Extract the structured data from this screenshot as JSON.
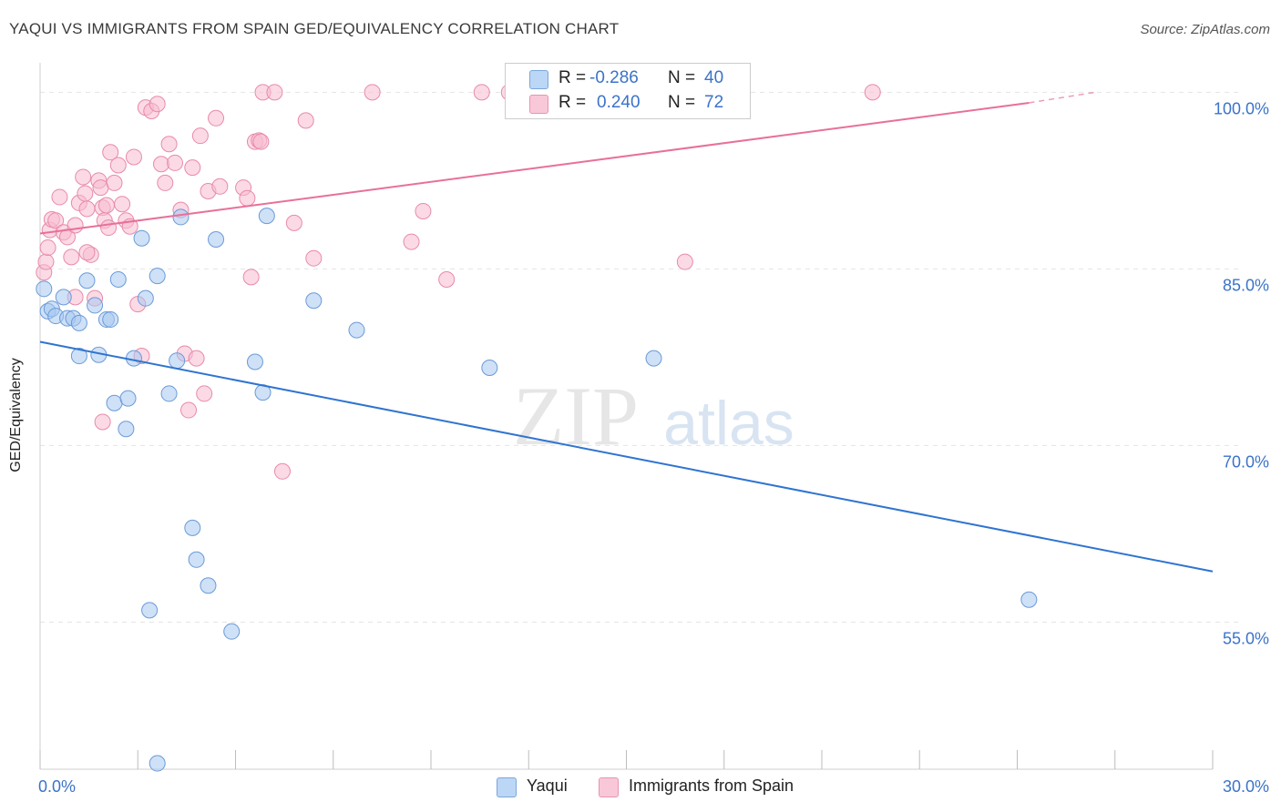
{
  "header": {
    "title": "YAQUI VS IMMIGRANTS FROM SPAIN GED/EQUIVALENCY CORRELATION CHART",
    "source": "Source: ZipAtlas.com"
  },
  "watermark": {
    "zip": "ZIP",
    "atlas": "atlas"
  },
  "legend": {
    "yaqui": {
      "r_label": "R =",
      "r_value": "-0.286",
      "n_label": "N =",
      "n_value": "40"
    },
    "spain": {
      "r_label": "R =",
      "r_value": "0.240",
      "n_label": "N =",
      "n_value": "72"
    }
  },
  "bottom_legend": {
    "yaqui": "Yaqui",
    "spain": "Immigrants from Spain"
  },
  "colors": {
    "yaqui_fill": "#a8c8f0",
    "yaqui_stroke": "#6a9ad8",
    "yaqui_line": "#2f74d0",
    "spain_fill": "#f8bcd0",
    "spain_stroke": "#e88aaa",
    "spain_line": "#e8709a",
    "tick_label": "#3b73c8"
  },
  "chart_data": {
    "type": "scatter",
    "title": "YAQUI VS IMMIGRANTS FROM SPAIN GED/EQUIVALENCY CORRELATION CHART",
    "xlabel": "",
    "ylabel": "GED/Equivalency",
    "xlim": [
      0,
      30
    ],
    "ylim": [
      42.5,
      102.5
    ],
    "x_tick_labels": [
      {
        "value": 0,
        "label": "0.0%"
      },
      {
        "value": 30,
        "label": "30.0%"
      }
    ],
    "y_tick_labels": [
      {
        "value": 100,
        "label": "100.0%"
      },
      {
        "value": 85,
        "label": "85.0%"
      },
      {
        "value": 70,
        "label": "70.0%"
      },
      {
        "value": 55,
        "label": "55.0%"
      }
    ],
    "series": [
      {
        "name": "Yaqui",
        "r": -0.286,
        "n": 40,
        "trend": {
          "x": [
            0,
            30
          ],
          "y": [
            78.8,
            59.3
          ]
        },
        "points": [
          [
            0.1,
            83.3
          ],
          [
            0.2,
            81.4
          ],
          [
            0.3,
            81.6
          ],
          [
            0.4,
            81.0
          ],
          [
            0.6,
            82.6
          ],
          [
            0.7,
            80.8
          ],
          [
            0.85,
            80.8
          ],
          [
            1.0,
            80.4
          ],
          [
            1.0,
            77.6
          ],
          [
            1.2,
            84.0
          ],
          [
            1.4,
            81.9
          ],
          [
            1.5,
            77.7
          ],
          [
            1.7,
            80.7
          ],
          [
            1.8,
            80.7
          ],
          [
            1.9,
            73.6
          ],
          [
            2.0,
            84.1
          ],
          [
            2.2,
            71.4
          ],
          [
            2.25,
            74.0
          ],
          [
            2.4,
            77.4
          ],
          [
            2.6,
            87.6
          ],
          [
            2.7,
            82.5
          ],
          [
            2.8,
            56.0
          ],
          [
            3.0,
            84.4
          ],
          [
            3.0,
            43.0
          ],
          [
            3.3,
            74.4
          ],
          [
            3.5,
            77.2
          ],
          [
            3.6,
            89.4
          ],
          [
            3.9,
            63.0
          ],
          [
            4.0,
            60.3
          ],
          [
            4.3,
            58.1
          ],
          [
            4.5,
            87.5
          ],
          [
            4.9,
            54.2
          ],
          [
            5.5,
            77.1
          ],
          [
            5.7,
            74.5
          ],
          [
            5.8,
            89.5
          ],
          [
            7.0,
            82.3
          ],
          [
            8.1,
            79.8
          ],
          [
            11.5,
            76.6
          ],
          [
            15.7,
            77.4
          ],
          [
            25.3,
            56.9
          ]
        ]
      },
      {
        "name": "Immigrants from Spain",
        "r": 0.24,
        "n": 72,
        "trend": {
          "x": [
            0,
            25.3
          ],
          "y": [
            88.0,
            99.1
          ]
        },
        "trend_dashed": {
          "x": [
            25.3,
            27.0
          ],
          "y": [
            99.1,
            100.0
          ]
        },
        "points": [
          [
            0.1,
            84.7
          ],
          [
            0.15,
            85.6
          ],
          [
            0.2,
            86.8
          ],
          [
            0.25,
            88.3
          ],
          [
            0.3,
            89.2
          ],
          [
            0.4,
            89.1
          ],
          [
            0.5,
            91.1
          ],
          [
            0.6,
            88.1
          ],
          [
            0.7,
            87.7
          ],
          [
            0.8,
            86.0
          ],
          [
            0.9,
            88.7
          ],
          [
            1.0,
            90.6
          ],
          [
            1.1,
            92.8
          ],
          [
            1.15,
            91.4
          ],
          [
            1.2,
            90.1
          ],
          [
            1.3,
            86.2
          ],
          [
            1.4,
            82.5
          ],
          [
            1.5,
            92.5
          ],
          [
            1.55,
            91.9
          ],
          [
            1.6,
            90.2
          ],
          [
            1.65,
            89.1
          ],
          [
            1.7,
            90.4
          ],
          [
            1.75,
            88.5
          ],
          [
            1.8,
            94.9
          ],
          [
            1.9,
            92.3
          ],
          [
            2.0,
            93.8
          ],
          [
            2.1,
            90.5
          ],
          [
            2.2,
            89.1
          ],
          [
            2.3,
            88.6
          ],
          [
            2.4,
            94.5
          ],
          [
            2.5,
            82.0
          ],
          [
            2.7,
            98.7
          ],
          [
            2.85,
            98.4
          ],
          [
            3.0,
            99.0
          ],
          [
            3.1,
            93.9
          ],
          [
            3.2,
            92.3
          ],
          [
            3.3,
            95.6
          ],
          [
            3.45,
            94.0
          ],
          [
            3.6,
            90.0
          ],
          [
            3.7,
            77.8
          ],
          [
            3.8,
            73.0
          ],
          [
            3.9,
            93.6
          ],
          [
            4.0,
            77.4
          ],
          [
            4.1,
            96.3
          ],
          [
            4.2,
            74.4
          ],
          [
            4.3,
            91.6
          ],
          [
            4.5,
            97.8
          ],
          [
            4.6,
            92.0
          ],
          [
            5.2,
            91.9
          ],
          [
            5.3,
            91.0
          ],
          [
            5.4,
            84.3
          ],
          [
            5.5,
            95.8
          ],
          [
            5.6,
            95.9
          ],
          [
            5.65,
            95.8
          ],
          [
            5.7,
            100.0
          ],
          [
            6.0,
            100.0
          ],
          [
            6.2,
            67.8
          ],
          [
            6.5,
            88.9
          ],
          [
            6.8,
            97.6
          ],
          [
            7.0,
            85.9
          ],
          [
            8.5,
            100.0
          ],
          [
            9.5,
            87.3
          ],
          [
            9.8,
            89.9
          ],
          [
            10.4,
            84.1
          ],
          [
            11.3,
            100.0
          ],
          [
            12.0,
            100.0
          ],
          [
            16.5,
            85.6
          ],
          [
            21.3,
            100.0
          ],
          [
            1.6,
            72.0
          ],
          [
            1.2,
            86.4
          ],
          [
            0.9,
            82.6
          ],
          [
            2.6,
            77.6
          ]
        ]
      }
    ]
  }
}
